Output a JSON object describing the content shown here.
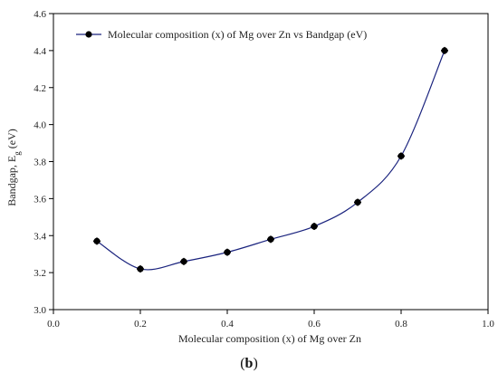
{
  "chart_data": {
    "type": "line",
    "xlabel": "Molecular composition (x) of Mg over Zn",
    "ylabel": "Bandgap, E",
    "ylabel_sub": "g",
    "ylabel_unit": " (eV)",
    "xlim": [
      0.0,
      1.0
    ],
    "ylim": [
      3.0,
      4.6
    ],
    "x_ticks": [
      0.0,
      0.2,
      0.4,
      0.6,
      0.8,
      1.0
    ],
    "x_tick_labels": [
      "0.0",
      "0.2",
      "0.4",
      "0.6",
      "0.8",
      "1.0"
    ],
    "y_ticks": [
      3.0,
      3.2,
      3.4,
      3.6,
      3.8,
      4.0,
      4.2,
      4.4,
      4.6
    ],
    "y_tick_labels": [
      "3.0",
      "3.2",
      "3.4",
      "3.6",
      "3.8",
      "4.0",
      "4.2",
      "4.4",
      "4.6"
    ],
    "grid": false,
    "legend_position": "top-left",
    "series": [
      {
        "name": "Molecular composition (x) of Mg over Zn vs Bandgap (eV)",
        "color": "#1a237e",
        "marker": "circle",
        "x": [
          0.1,
          0.2,
          0.3,
          0.4,
          0.5,
          0.6,
          0.7,
          0.8,
          0.9
        ],
        "y": [
          3.37,
          3.22,
          3.26,
          3.31,
          3.38,
          3.45,
          3.58,
          3.83,
          4.4
        ]
      }
    ]
  },
  "caption": {
    "open": "(",
    "letter": "b",
    "close": ")"
  }
}
